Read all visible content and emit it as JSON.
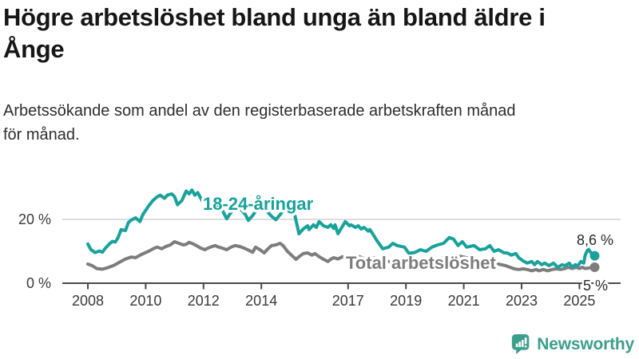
{
  "header": {
    "title_lines": [
      "Högre arbetslöshet bland unga än bland äldre i",
      "Ånge"
    ],
    "subtitle_lines": [
      "Arbetssökande som andel av den registerbaserade arbetskraften månad",
      "för månad."
    ]
  },
  "branding": {
    "logo_text": "Newsworthy",
    "logo_icon": "bar-chart-speech-bubble-icon",
    "brand_color": "#3d9e8e"
  },
  "colors": {
    "youth_series": "#18a29b",
    "total_series": "#7d7d7d",
    "grid": "#dedede",
    "axis": "#4a4a4a",
    "text": "#3a3a3a",
    "title": "#161616"
  },
  "chart_data": {
    "type": "line",
    "title": "Högre arbetslöshet bland unga än bland äldre i Ånge",
    "xlabel": "",
    "ylabel": "",
    "x_axis": {
      "unit": "year",
      "tick_labels": [
        "2008",
        "2010",
        "2012",
        "2014",
        "2017",
        "2019",
        "2021",
        "2023",
        "2025"
      ],
      "ticks": [
        2008,
        2010,
        2012,
        2014,
        2017,
        2019,
        2021,
        2023,
        2025
      ],
      "range": [
        2008,
        2026.4
      ]
    },
    "y_axis": {
      "tick_labels": [
        "0 %",
        "20 %"
      ],
      "ticks": [
        0,
        20
      ],
      "range": [
        0,
        32
      ],
      "grid_at": [
        20
      ]
    },
    "legend_position": "inline-labels",
    "series": [
      {
        "name": "18-24-åringar",
        "color": "#18a29b",
        "end_label": "8,6 %",
        "end_value": 8.6,
        "points": [
          [
            2008.0,
            12.3
          ],
          [
            2008.1,
            10.6
          ],
          [
            2008.25,
            9.6
          ],
          [
            2008.4,
            10.1
          ],
          [
            2008.5,
            9.7
          ],
          [
            2008.6,
            10.9
          ],
          [
            2008.75,
            12.4
          ],
          [
            2008.85,
            13.1
          ],
          [
            2008.95,
            12.9
          ],
          [
            2009.05,
            14.4
          ],
          [
            2009.15,
            16.8
          ],
          [
            2009.3,
            16.5
          ],
          [
            2009.4,
            19.0
          ],
          [
            2009.5,
            19.8
          ],
          [
            2009.65,
            20.5
          ],
          [
            2009.8,
            19.3
          ],
          [
            2009.9,
            21.5
          ],
          [
            2010.1,
            24.2
          ],
          [
            2010.25,
            25.9
          ],
          [
            2010.4,
            27.1
          ],
          [
            2010.5,
            27.6
          ],
          [
            2010.65,
            26.6
          ],
          [
            2010.75,
            27.6
          ],
          [
            2010.9,
            28.0
          ],
          [
            2011.0,
            27.1
          ],
          [
            2011.1,
            24.6
          ],
          [
            2011.25,
            25.9
          ],
          [
            2011.4,
            28.9
          ],
          [
            2011.5,
            28.0
          ],
          [
            2011.6,
            29.2
          ],
          [
            2011.7,
            27.6
          ],
          [
            2011.8,
            28.4
          ],
          [
            2011.95,
            25.9
          ],
          [
            2012.05,
            25.2
          ],
          [
            2012.15,
            26.4
          ],
          [
            2012.3,
            24.6
          ],
          [
            2012.4,
            25.9
          ],
          [
            2012.5,
            24.2
          ],
          [
            2012.65,
            22.9
          ],
          [
            2012.8,
            20.2
          ],
          [
            2012.95,
            22.2
          ],
          [
            2013.1,
            23.4
          ],
          [
            2013.3,
            23.0
          ],
          [
            2013.45,
            21.5
          ],
          [
            2013.55,
            19.7
          ],
          [
            2013.7,
            21.2
          ],
          [
            2013.85,
            23.2
          ],
          [
            2014.0,
            23.8
          ],
          [
            2014.2,
            22.5
          ],
          [
            2014.35,
            21.0
          ],
          [
            2014.5,
            19.9
          ],
          [
            2014.65,
            21.5
          ],
          [
            2014.8,
            23.3
          ],
          [
            2014.95,
            23.7
          ],
          [
            2015.05,
            22.5
          ],
          [
            2015.15,
            21.7
          ],
          [
            2015.3,
            15.5
          ],
          [
            2015.45,
            17.0
          ],
          [
            2015.6,
            18.0
          ],
          [
            2015.65,
            16.8
          ],
          [
            2015.8,
            18.3
          ],
          [
            2015.9,
            17.5
          ],
          [
            2016.0,
            19.3
          ],
          [
            2016.15,
            18.0
          ],
          [
            2016.3,
            17.5
          ],
          [
            2016.4,
            18.3
          ],
          [
            2016.5,
            17.2
          ],
          [
            2016.55,
            18.3
          ],
          [
            2016.65,
            15.5
          ],
          [
            2016.75,
            17.0
          ],
          [
            2016.9,
            19.3
          ],
          [
            2017.05,
            18.0
          ],
          [
            2017.1,
            18.3
          ],
          [
            2017.25,
            17.5
          ],
          [
            2017.35,
            18.0
          ],
          [
            2017.45,
            17.0
          ],
          [
            2017.55,
            17.5
          ],
          [
            2017.7,
            16.3
          ],
          [
            2017.75,
            16.8
          ],
          [
            2017.85,
            15.5
          ],
          [
            2018.0,
            13.3
          ],
          [
            2018.2,
            10.8
          ],
          [
            2018.4,
            11.3
          ],
          [
            2018.55,
            12.5
          ],
          [
            2018.7,
            11.8
          ],
          [
            2018.95,
            11.3
          ],
          [
            2019.1,
            9.4
          ],
          [
            2019.3,
            9.6
          ],
          [
            2019.5,
            10.5
          ],
          [
            2019.7,
            10.0
          ],
          [
            2019.9,
            11.3
          ],
          [
            2020.1,
            12.0
          ],
          [
            2020.3,
            12.5
          ],
          [
            2020.5,
            14.3
          ],
          [
            2020.65,
            13.8
          ],
          [
            2020.8,
            11.8
          ],
          [
            2020.95,
            13.0
          ],
          [
            2021.1,
            11.3
          ],
          [
            2021.35,
            11.8
          ],
          [
            2021.55,
            10.5
          ],
          [
            2021.75,
            10.8
          ],
          [
            2021.9,
            11.8
          ],
          [
            2022.05,
            10.0
          ],
          [
            2022.2,
            10.5
          ],
          [
            2022.4,
            9.5
          ],
          [
            2022.5,
            9.5
          ],
          [
            2022.65,
            8.8
          ],
          [
            2022.8,
            9.3
          ],
          [
            2022.9,
            8.0
          ],
          [
            2023.05,
            7.0
          ],
          [
            2023.2,
            6.3
          ],
          [
            2023.35,
            6.8
          ],
          [
            2023.45,
            5.8
          ],
          [
            2023.55,
            6.8
          ],
          [
            2023.7,
            5.8
          ],
          [
            2023.8,
            6.3
          ],
          [
            2023.95,
            5.5
          ],
          [
            2024.1,
            6.3
          ],
          [
            2024.25,
            5.0
          ],
          [
            2024.4,
            5.8
          ],
          [
            2024.5,
            5.5
          ],
          [
            2024.65,
            6.3
          ],
          [
            2024.75,
            5.0
          ],
          [
            2024.85,
            5.8
          ],
          [
            2024.95,
            5.5
          ],
          [
            2025.05,
            6.8
          ],
          [
            2025.15,
            6.3
          ],
          [
            2025.2,
            8.8
          ],
          [
            2025.3,
            10.8
          ],
          [
            2025.4,
            9.5
          ],
          [
            2025.5,
            8.6
          ]
        ]
      },
      {
        "name": "Total arbetslöshet",
        "color": "#7d7d7d",
        "end_label": "5 %",
        "end_value": 5.0,
        "points": [
          [
            2008.0,
            6.0
          ],
          [
            2008.15,
            5.5
          ],
          [
            2008.3,
            4.6
          ],
          [
            2008.5,
            4.4
          ],
          [
            2008.7,
            4.9
          ],
          [
            2008.9,
            5.6
          ],
          [
            2009.1,
            6.6
          ],
          [
            2009.3,
            7.6
          ],
          [
            2009.5,
            8.2
          ],
          [
            2009.65,
            8.0
          ],
          [
            2009.85,
            9.0
          ],
          [
            2010.1,
            10.0
          ],
          [
            2010.3,
            11.0
          ],
          [
            2010.4,
            11.3
          ],
          [
            2010.55,
            10.8
          ],
          [
            2010.7,
            11.5
          ],
          [
            2010.85,
            12.0
          ],
          [
            2011.0,
            13.0
          ],
          [
            2011.15,
            12.5
          ],
          [
            2011.3,
            12.0
          ],
          [
            2011.4,
            12.2
          ],
          [
            2011.5,
            12.8
          ],
          [
            2011.6,
            12.5
          ],
          [
            2011.75,
            11.8
          ],
          [
            2011.9,
            11.0
          ],
          [
            2012.05,
            10.5
          ],
          [
            2012.15,
            11.0
          ],
          [
            2012.3,
            11.5
          ],
          [
            2012.4,
            11.8
          ],
          [
            2012.5,
            11.4
          ],
          [
            2012.65,
            11.0
          ],
          [
            2012.8,
            10.5
          ],
          [
            2012.95,
            11.3
          ],
          [
            2013.1,
            11.8
          ],
          [
            2013.25,
            11.5
          ],
          [
            2013.4,
            11.0
          ],
          [
            2013.55,
            10.4
          ],
          [
            2013.7,
            9.7
          ],
          [
            2013.8,
            11.3
          ],
          [
            2013.95,
            10.5
          ],
          [
            2014.1,
            9.5
          ],
          [
            2014.2,
            10.5
          ],
          [
            2014.35,
            11.8
          ],
          [
            2014.5,
            12.0
          ],
          [
            2014.65,
            12.5
          ],
          [
            2014.75,
            11.8
          ],
          [
            2014.9,
            10.0
          ],
          [
            2015.1,
            8.3
          ],
          [
            2015.2,
            7.5
          ],
          [
            2015.3,
            8.3
          ],
          [
            2015.45,
            9.3
          ],
          [
            2015.6,
            9.5
          ],
          [
            2015.75,
            8.8
          ],
          [
            2015.85,
            9.3
          ],
          [
            2016.0,
            8.3
          ],
          [
            2016.15,
            7.5
          ],
          [
            2016.3,
            6.8
          ],
          [
            2016.4,
            7.5
          ],
          [
            2016.5,
            8.0
          ],
          [
            2016.65,
            7.6
          ],
          [
            2016.8,
            8.3
          ],
          [
            2017.0,
            8.0
          ],
          [
            2017.3,
            8.6
          ],
          [
            2017.6,
            7.6
          ],
          [
            2017.9,
            7.9
          ],
          [
            2018.2,
            7.2
          ],
          [
            2018.5,
            6.6
          ],
          [
            2018.8,
            6.9
          ],
          [
            2019.1,
            6.4
          ],
          [
            2019.4,
            6.1
          ],
          [
            2019.7,
            6.3
          ],
          [
            2020.0,
            6.6
          ],
          [
            2020.3,
            8.0
          ],
          [
            2020.6,
            8.8
          ],
          [
            2020.9,
            8.4
          ],
          [
            2021.2,
            7.8
          ],
          [
            2021.5,
            7.2
          ],
          [
            2021.8,
            6.9
          ],
          [
            2022.05,
            6.3
          ],
          [
            2022.3,
            5.8
          ],
          [
            2022.45,
            5.5
          ],
          [
            2022.6,
            5.0
          ],
          [
            2022.75,
            4.5
          ],
          [
            2022.9,
            4.3
          ],
          [
            2023.05,
            4.5
          ],
          [
            2023.2,
            4.3
          ],
          [
            2023.35,
            3.9
          ],
          [
            2023.5,
            4.3
          ],
          [
            2023.6,
            3.9
          ],
          [
            2023.75,
            4.3
          ],
          [
            2023.9,
            3.9
          ],
          [
            2024.05,
            4.3
          ],
          [
            2024.2,
            4.5
          ],
          [
            2024.35,
            4.3
          ],
          [
            2024.5,
            4.6
          ],
          [
            2024.6,
            5.0
          ],
          [
            2024.75,
            4.6
          ],
          [
            2024.9,
            5.0
          ],
          [
            2025.0,
            4.6
          ],
          [
            2025.1,
            5.0
          ],
          [
            2025.2,
            4.6
          ],
          [
            2025.35,
            4.8
          ],
          [
            2025.5,
            5.0
          ]
        ]
      }
    ]
  }
}
